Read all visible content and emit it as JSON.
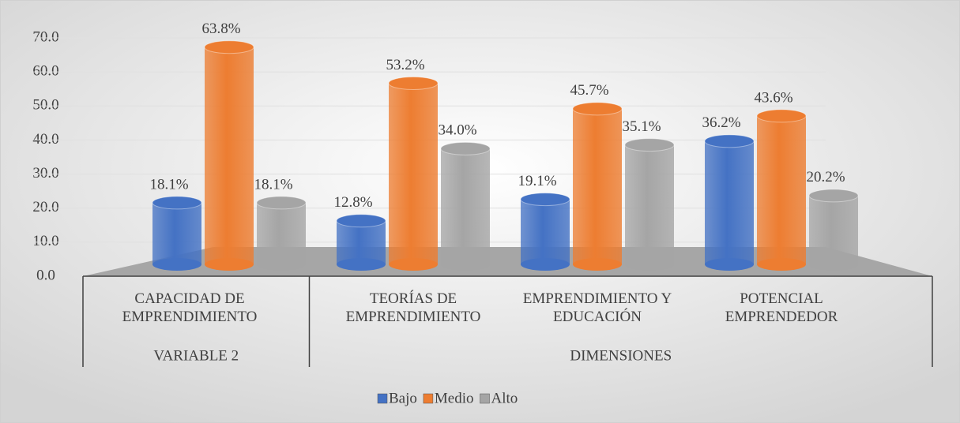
{
  "chart_data": {
    "type": "bar",
    "groups": [
      {
        "label": "VARIABLE 2",
        "categories": [
          "CAPACIDAD DE EMPRENDIMIENTO"
        ]
      },
      {
        "label": "DIMENSIONES",
        "categories": [
          "TEORÍAS DE EMPRENDIMIENTO",
          "EMPRENDIMIENTO Y EDUCACIÓN",
          "POTENCIAL EMPRENDEDOR"
        ]
      }
    ],
    "series": [
      {
        "name": "Bajo",
        "color": "#4472c4",
        "values": [
          18.1,
          12.8,
          19.1,
          36.2
        ],
        "value_labels": [
          "18.1%",
          "12.8%",
          "19.1%",
          "36.2%"
        ]
      },
      {
        "name": "Medio",
        "color": "#ed7d31",
        "values": [
          63.8,
          53.2,
          45.7,
          43.6
        ],
        "value_labels": [
          "63.8%",
          "53.2%",
          "45.7%",
          "43.6%"
        ]
      },
      {
        "name": "Alto",
        "color": "#a5a5a5",
        "values": [
          18.1,
          34.0,
          35.1,
          20.2
        ],
        "value_labels": [
          "18.1%",
          "34.0%",
          "35.1%",
          "20.2%"
        ]
      }
    ],
    "ylim": [
      0,
      70
    ],
    "yticks": [
      {
        "value": 0,
        "label": "0.0"
      },
      {
        "value": 10,
        "label": "10.0"
      },
      {
        "value": 20,
        "label": "20.0"
      },
      {
        "value": 30,
        "label": "30.0"
      },
      {
        "value": 40,
        "label": "40.0"
      },
      {
        "value": 50,
        "label": "50.0"
      },
      {
        "value": 60,
        "label": "60.0"
      },
      {
        "value": 70,
        "label": "70.0"
      }
    ],
    "grid": true,
    "legend": "bottom"
  }
}
